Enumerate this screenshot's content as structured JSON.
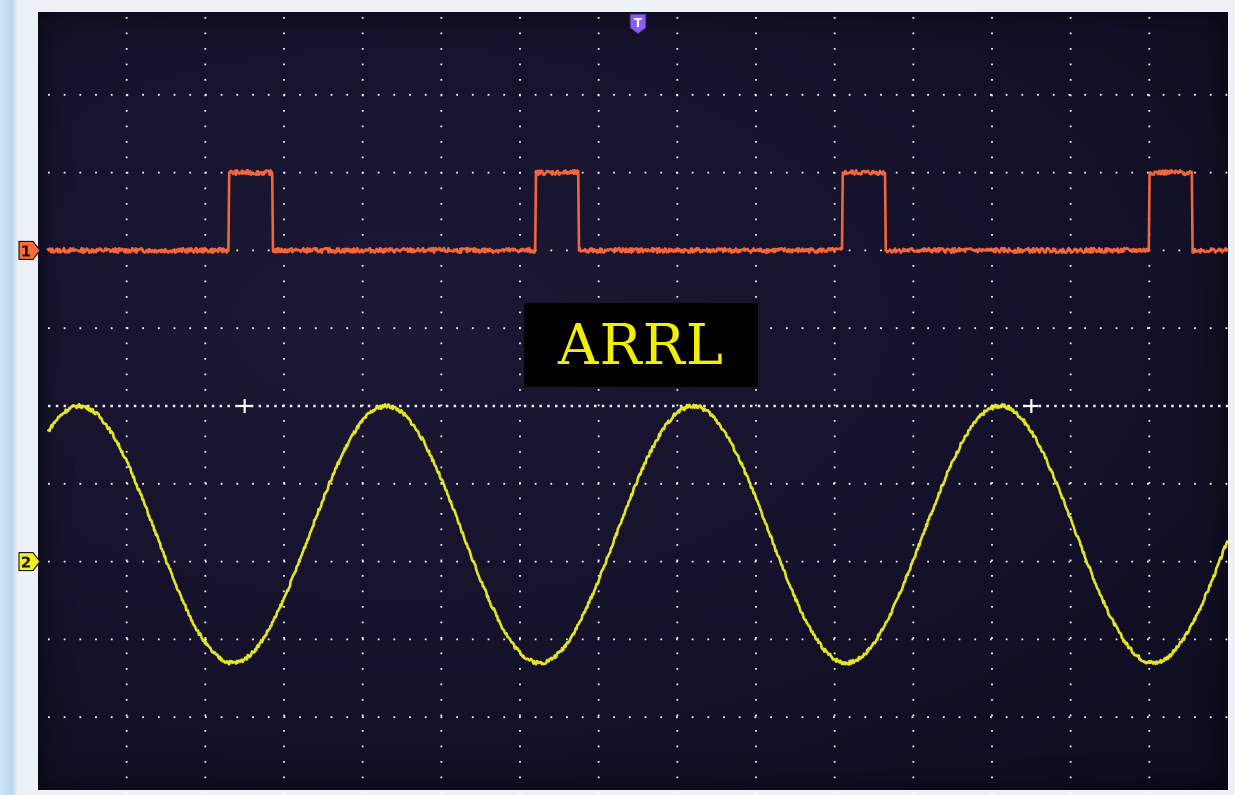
{
  "chart_data": {
    "type": "line",
    "instrument": "oscilloscope",
    "grid": {
      "divisions_x": 15,
      "divisions_y": 10,
      "minor_ticks_per_division": 5,
      "dotted": true,
      "gridline_color": "#ffffff"
    },
    "xlim": [
      0,
      15
    ],
    "ylim": [
      -5,
      5
    ],
    "x_unit": "div",
    "y_unit": "div",
    "trigger_marker": {
      "label": "T",
      "x": 7.5,
      "color": "#8a5cf0"
    },
    "series": [
      {
        "channel_label": "1",
        "color": "#ff6a3d",
        "waveform": "pulse",
        "ground_level": 2.0,
        "low_level": 2.0,
        "high_level": 3.0,
        "period": 3.9,
        "pulse_width": 0.55,
        "first_rising_edge": 2.3,
        "noise": 0.03
      },
      {
        "channel_label": "2",
        "color": "#f0f024",
        "waveform": "sine",
        "ground_level": -2.0,
        "offset": -1.65,
        "amplitude": 1.65,
        "period": 3.9,
        "first_peak_x": 0.4,
        "noise": 0.025
      }
    ]
  },
  "watermark": {
    "text": "ARRL",
    "text_color": "#f2f000",
    "background_color": "#000000"
  }
}
